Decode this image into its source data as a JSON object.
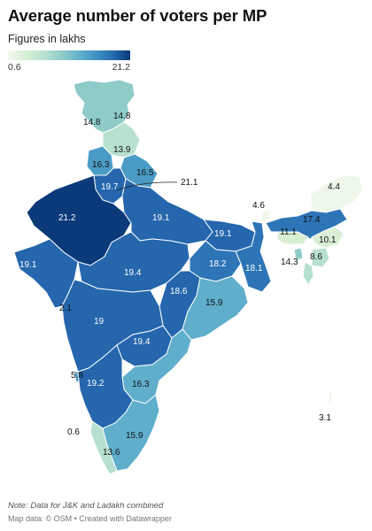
{
  "title": "Average number of voters per MP",
  "subtitle": "Figures in lakhs",
  "legend": {
    "min": "0.6",
    "max": "21.2"
  },
  "colors": {
    "c21": "#0b3a7a",
    "c19": "#2566ad",
    "c18": "#2d75b6",
    "c16": "#4a9cc6",
    "c15": "#5faecb",
    "c14": "#8ecbc9",
    "c13": "#b7e0cf",
    "c11": "#d8efd4",
    "c4": "#eef8ea"
  },
  "labels": {
    "jk": "14.8",
    "ladakh": "14.8",
    "hp": "13.9",
    "punjab": "16.3",
    "uk": "16.5",
    "delhi": "21.1",
    "haryana": "19.7",
    "rajasthan": "21.2",
    "up": "19.1",
    "bihar": "19.1",
    "sikkim": "4.6",
    "arunachal": "4.4",
    "assam": "17.4",
    "meghalaya": "11.1",
    "nagaland": "10.1",
    "manipur": "8.6",
    "tripura": "14.3",
    "gujarat": "19.1",
    "mp": "19.4",
    "jharkhand": "18.2",
    "wb": "18.1",
    "chhattisgarh": "18.6",
    "odisha": "15.9",
    "dnh": "2.1",
    "maharashtra": "19",
    "telangana": "19.4",
    "ap": "16.3",
    "goa": "5.8",
    "karnataka": "19.2",
    "lakshadweep": "0.6",
    "tn": "15.9",
    "kerala": "13.6",
    "andaman": "3.1"
  },
  "note": "Note: Data for J&K and Ladakh combined",
  "credit": "Map data: © OSM  • Created with Datawrapper"
}
